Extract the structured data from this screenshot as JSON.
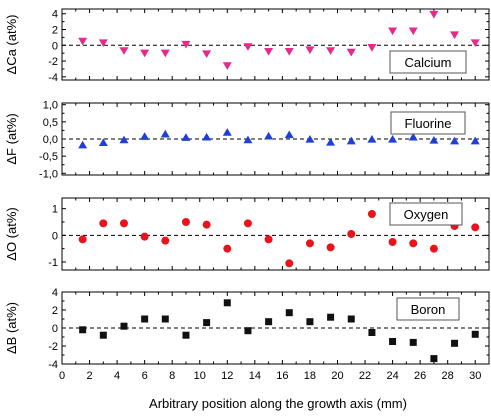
{
  "chart_data": {
    "type": "scatter",
    "xlabel": "Arbitrary position along the growth axis (mm)",
    "xlim": [
      0,
      31
    ],
    "xticks": [
      "0",
      "2",
      "4",
      "6",
      "8",
      "10",
      "12",
      "14",
      "16",
      "18",
      "20",
      "22",
      "24",
      "26",
      "28",
      "30"
    ],
    "panels": [
      {
        "legend": "Calcium",
        "ylabel": "ΔCa (at%)",
        "ylim": [
          -4.4,
          4.6
        ],
        "yticks": [
          "4",
          "2",
          "0",
          "-2",
          "-4"
        ],
        "ytick_values": [
          4,
          2,
          0,
          -2,
          -4
        ],
        "marker": "triangle-down",
        "color": "#e8298b",
        "x": [
          1.5,
          3,
          4.5,
          6,
          7.5,
          9,
          10.5,
          12,
          13.5,
          15,
          16.5,
          18,
          19.5,
          21,
          22.5,
          24,
          25.5,
          27,
          28.5,
          30
        ],
        "y": [
          0.5,
          0.3,
          -0.7,
          -1.0,
          -1.0,
          0.1,
          -1.1,
          -2.6,
          -0.2,
          -0.8,
          -0.8,
          -0.6,
          -0.7,
          -0.9,
          -0.3,
          1.8,
          1.8,
          3.9,
          1.3,
          0.3
        ]
      },
      {
        "legend": "Fluorine",
        "ylabel": "ΔF (at%)",
        "ylim": [
          -1.05,
          1.05
        ],
        "yticks": [
          "1,0",
          "0,5",
          "0,0",
          "-0,5",
          "-1,0"
        ],
        "ytick_values": [
          1.0,
          0.5,
          0.0,
          -0.5,
          -1.0
        ],
        "minor_ticks": [
          0.75,
          0.25,
          -0.25,
          -0.75
        ],
        "marker": "triangle-up",
        "color": "#1f3fd6",
        "x": [
          1.5,
          3,
          4.5,
          6,
          7.5,
          9,
          10.5,
          12,
          13.5,
          15,
          16.5,
          18,
          19.5,
          21,
          22.5,
          24,
          25.5,
          27,
          28.5,
          30
        ],
        "y": [
          -0.17,
          -0.1,
          -0.02,
          0.08,
          0.15,
          0.05,
          0.06,
          0.2,
          -0.02,
          0.09,
          0.13,
          0.0,
          -0.09,
          -0.05,
          0.0,
          0.0,
          0.06,
          -0.03,
          -0.05,
          -0.05
        ]
      },
      {
        "legend": "Oxygen",
        "ylabel": "ΔO (at%)",
        "ylim": [
          -1.3,
          1.4
        ],
        "yticks": [
          "1",
          "0",
          "-1"
        ],
        "ytick_values": [
          1,
          0,
          -1
        ],
        "marker": "circle",
        "color": "#e8141c",
        "x": [
          1.5,
          3,
          4.5,
          6,
          7.5,
          9,
          10.5,
          12,
          13.5,
          15,
          16.5,
          18,
          19.5,
          21,
          22.5,
          24,
          25.5,
          27,
          28.5,
          30
        ],
        "y": [
          -0.15,
          0.45,
          0.45,
          -0.05,
          -0.2,
          0.5,
          0.4,
          -0.5,
          0.45,
          -0.15,
          -1.05,
          -0.3,
          -0.45,
          0.05,
          0.8,
          -0.25,
          -0.3,
          -0.5,
          0.35,
          0.3
        ]
      },
      {
        "legend": "Boron",
        "ylabel": "ΔB (at%)",
        "ylim": [
          -4.0,
          4.0
        ],
        "yticks": [
          "4",
          "2",
          "0",
          "-2",
          "-4"
        ],
        "ytick_values": [
          4,
          2,
          0,
          -2,
          -4
        ],
        "marker": "square",
        "color": "#111111",
        "x": [
          1.5,
          3,
          4.5,
          6,
          7.5,
          9,
          10.5,
          12,
          13.5,
          15,
          16.5,
          18,
          19.5,
          21,
          22.5,
          24,
          25.5,
          27,
          28.5,
          30
        ],
        "y": [
          -0.2,
          -0.8,
          0.2,
          1.0,
          1.0,
          -0.8,
          0.6,
          2.8,
          -0.3,
          0.7,
          1.7,
          0.7,
          1.2,
          1.0,
          -0.5,
          -1.5,
          -1.6,
          -3.4,
          -1.7,
          -0.7
        ]
      }
    ]
  }
}
